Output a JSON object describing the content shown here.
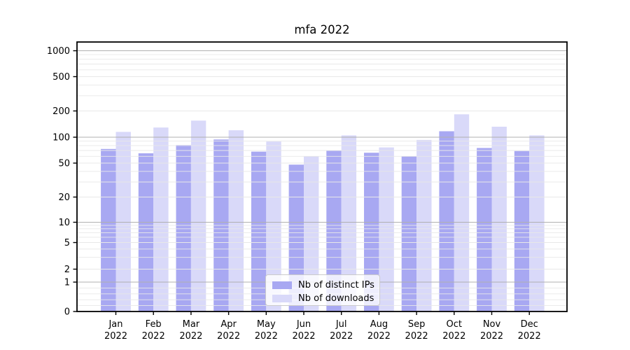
{
  "chart_data": {
    "type": "bar",
    "title": "mfa 2022",
    "categories": [
      "Jan",
      "Feb",
      "Mar",
      "Apr",
      "May",
      "Jun",
      "Jul",
      "Aug",
      "Sep",
      "Oct",
      "Nov",
      "Dec"
    ],
    "category_year": "2022",
    "series": [
      {
        "name": "Nb of distinct IPs",
        "color": "#a8a8f2",
        "values": [
          73,
          65,
          81,
          94,
          68,
          48,
          70,
          66,
          60,
          117,
          75,
          69
        ]
      },
      {
        "name": "Nb of downloads",
        "color": "#d9d9f9",
        "values": [
          115,
          129,
          155,
          120,
          89,
          60,
          105,
          76,
          93,
          183,
          132,
          105
        ]
      }
    ],
    "xlabel": "",
    "ylabel": "",
    "y_scale": "symlog",
    "y_ticks": [
      0,
      1,
      2,
      5,
      10,
      20,
      50,
      100,
      200,
      500,
      1000
    ],
    "grid": {
      "major_lines": [
        1,
        10,
        100,
        1000
      ],
      "minor_subs": [
        2,
        3,
        4,
        5,
        6,
        7,
        8,
        9
      ],
      "minor_below_one": [
        0.2,
        0.4,
        0.6,
        0.8
      ]
    },
    "legend_position": "lower center",
    "colors": {
      "grid_major": "#b0b0b0",
      "grid_minor": "#e8e8e8",
      "spine": "#000000",
      "text": "#000000"
    }
  }
}
